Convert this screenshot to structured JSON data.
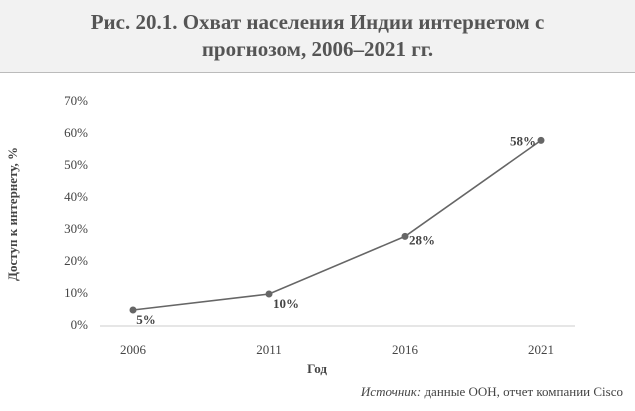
{
  "chart_data": {
    "type": "line",
    "title": "Рис. 20.1. Охват населения Индии интернетом с прогнозом, 2006–2021 гг.",
    "x_label": "Год",
    "y_label": "Доступ к интернету, %",
    "categories": [
      "2006",
      "2011",
      "2016",
      "2021"
    ],
    "series": [
      {
        "color": "#666666",
        "values": [
          5,
          10,
          28,
          58
        ],
        "value_labels": [
          "5%",
          "10%",
          "28%",
          "58%"
        ]
      }
    ],
    "ylim": [
      0,
      70
    ],
    "yticks": [
      {
        "value": 0,
        "label": "0%"
      },
      {
        "value": 10,
        "label": "10%"
      },
      {
        "value": 20,
        "label": "20%"
      },
      {
        "value": 30,
        "label": "30%"
      },
      {
        "value": 40,
        "label": "40%"
      },
      {
        "value": 50,
        "label": "50%"
      },
      {
        "value": 60,
        "label": "60%"
      },
      {
        "value": 70,
        "label": "70%"
      }
    ],
    "grid": false,
    "source_label": "Источник:",
    "source": "данные ООН, отчет компании Cisco"
  }
}
